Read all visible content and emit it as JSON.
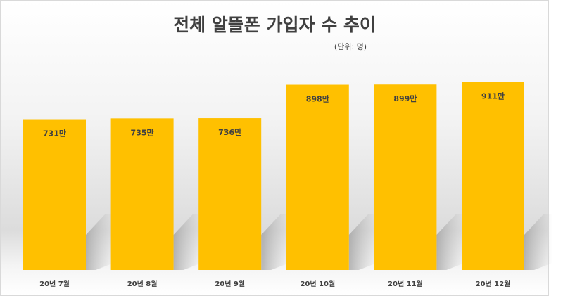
{
  "chart_data": {
    "type": "bar",
    "title": "전체 알뜰폰 가입자 수 추이",
    "unit_note": "(단위: 명)",
    "categories": [
      "20년 7월",
      "20년 8월",
      "20년 9월",
      "20년 10월",
      "20년 11월",
      "20년 12월"
    ],
    "values": [
      731,
      735,
      736,
      898,
      899,
      911
    ],
    "data_labels": [
      "731만",
      "735만",
      "736만",
      "898만",
      "899만",
      "911만"
    ],
    "ylim": [
      0,
      1000
    ],
    "grid": false,
    "legend": "none",
    "bar_color": "#FFC000"
  }
}
